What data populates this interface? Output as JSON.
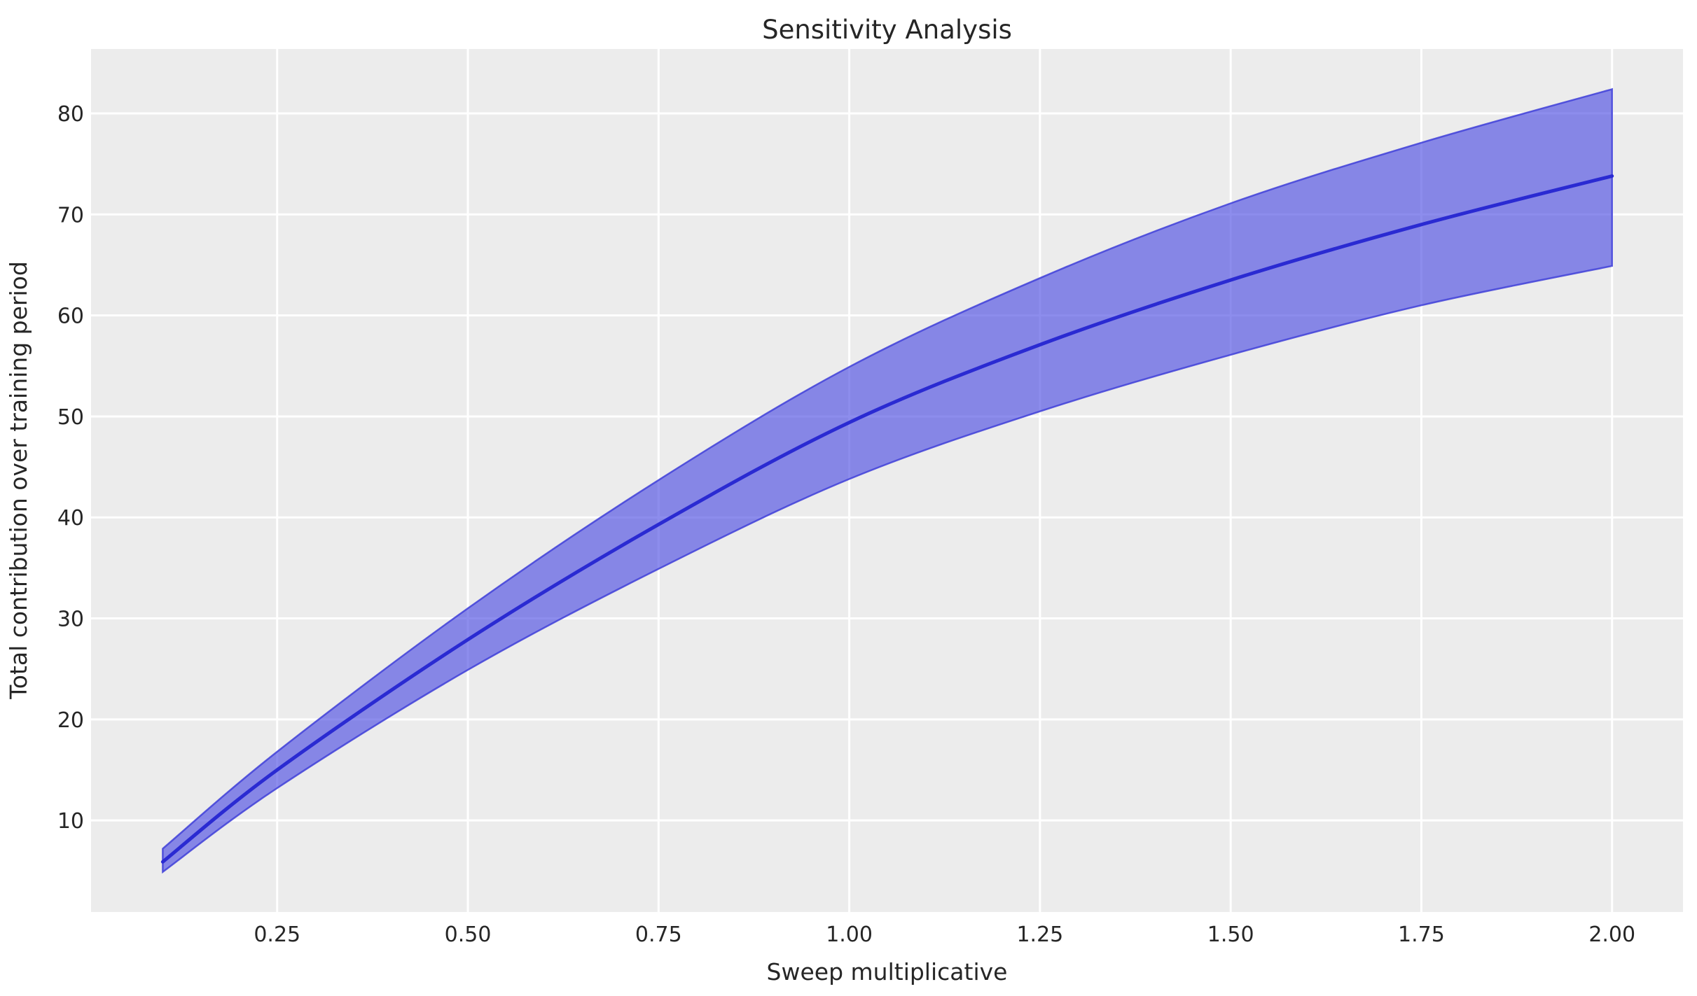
{
  "figure": {
    "background": "#ffffff",
    "plot_background": "#ececec",
    "grid_color": "#ffffff",
    "text_color": "#262626",
    "line_color": "#2a2ad2",
    "band_fill": "#5050e4",
    "band_fill_opacity": 0.65,
    "band_edge": "#4040d8",
    "band_edge_opacity": 0.85
  },
  "chart_data": {
    "type": "line",
    "title": "Sensitivity Analysis",
    "xlabel": "Sweep multiplicative",
    "ylabel": "Total contribution over training period",
    "x": [
      0.1,
      0.25,
      0.5,
      0.75,
      1.0,
      1.25,
      1.5,
      1.75,
      2.0
    ],
    "series": [
      {
        "name": "mean",
        "values": [
          5.9,
          15.0,
          27.9,
          39.3,
          49.4,
          57.1,
          63.5,
          69.0,
          73.8
        ]
      },
      {
        "name": "band_lower",
        "values": [
          4.9,
          13.2,
          24.9,
          34.9,
          43.8,
          50.5,
          56.1,
          61.0,
          64.9
        ]
      },
      {
        "name": "band_upper",
        "values": [
          7.2,
          16.8,
          31.0,
          43.7,
          54.9,
          63.7,
          71.1,
          77.1,
          82.4
        ]
      }
    ],
    "xticks": {
      "values": [
        0.25,
        0.5,
        0.75,
        1.0,
        1.25,
        1.5,
        1.75,
        2.0
      ],
      "labels": [
        "0.25",
        "0.50",
        "0.75",
        "1.00",
        "1.25",
        "1.50",
        "1.75",
        "2.00"
      ]
    },
    "yticks": {
      "values": [
        10,
        20,
        30,
        40,
        50,
        60,
        70,
        80
      ],
      "labels": [
        "10",
        "20",
        "30",
        "40",
        "50",
        "60",
        "70",
        "80"
      ]
    },
    "xlim": [
      0.006,
      2.093
    ],
    "ylim": [
      0.93,
      86.38
    ],
    "grid": true,
    "legend": false
  }
}
